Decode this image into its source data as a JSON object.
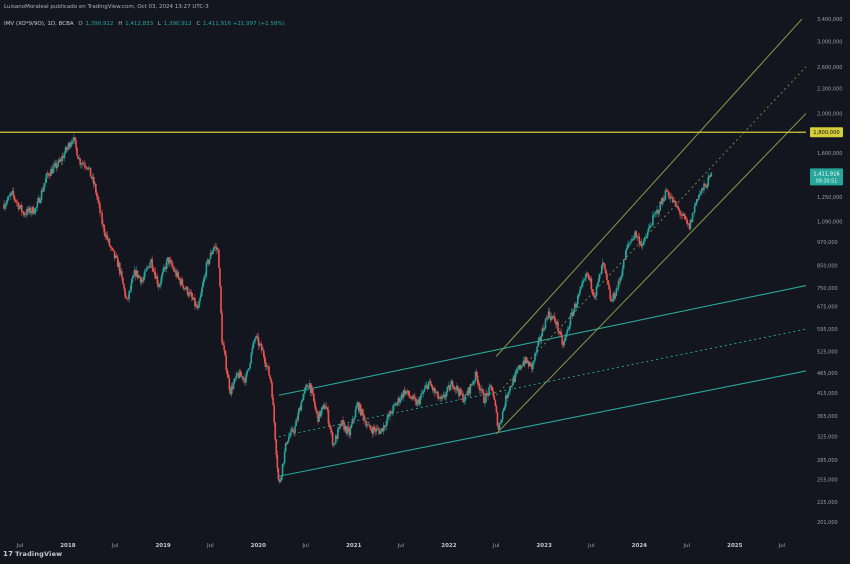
{
  "header": {
    "publisher": "LuisanoMoraleal publicado en TradingView.com, Oct 03, 2024 13:27 UTC-3",
    "symbol": "IMV (XO*9/9O), 1D, BCBA",
    "ohlc": [
      {
        "label": "O",
        "value": "1,390,912"
      },
      {
        "label": "H",
        "value": "1,412,833"
      },
      {
        "label": "L",
        "value": "1,390,912"
      },
      {
        "label": "C",
        "value": "1,411,916 +21,997 (+1.58%)"
      }
    ]
  },
  "footer": {
    "brand": "TradingView",
    "logo_glyph": "17"
  },
  "colors": {
    "background": "#13161f",
    "up": "#26a69a",
    "down": "#ef5350",
    "resistance": "#d4cc38",
    "channel_upper": "#8c9c4a",
    "channel_lower": "#2bb7a5",
    "price_badge": "#26a69a"
  },
  "chart_data": {
    "type": "candlestick",
    "scale": "log",
    "title": "",
    "xlabel": "",
    "ylabel": "",
    "x_ticks": [
      "Jul",
      "2018",
      "Jul",
      "2019",
      "Jul",
      "2020",
      "Jul",
      "2021",
      "Jul",
      "2022",
      "Jul",
      "2023",
      "Jul",
      "2024",
      "Jul",
      "2025",
      "Jul"
    ],
    "x_tick_dates": [
      "2017-07",
      "2018-01",
      "2018-07",
      "2019-01",
      "2019-07",
      "2020-01",
      "2020-07",
      "2021-01",
      "2021-07",
      "2022-01",
      "2022-07",
      "2023-01",
      "2023-07",
      "2024-01",
      "2024-07",
      "2025-01",
      "2025-07"
    ],
    "x_range": [
      "2017-05",
      "2025-10"
    ],
    "y_ticks": [
      "3,400,000",
      "3,000,000",
      "2,600,000",
      "2,300,000",
      "2,000,000",
      "1,800,000",
      "1,600,000",
      "1,250,000",
      "1,090,000",
      "970,000",
      "850,000",
      "750,000",
      "675,000",
      "595,000",
      "525,000",
      "465,000",
      "415,000",
      "365,000",
      "325,000",
      "285,000",
      "255,000",
      "225,000",
      "201,000"
    ],
    "y_tick_values": [
      3400000,
      3000000,
      2600000,
      2300000,
      2000000,
      1800000,
      1600000,
      1250000,
      1090000,
      970000,
      850000,
      750000,
      675000,
      595000,
      525000,
      465000,
      415000,
      365000,
      325000,
      285000,
      255000,
      225000,
      201000
    ],
    "ylim": [
      190000,
      3500000
    ],
    "grid": false,
    "price_path": [
      {
        "date": "2017-05-01",
        "price": 1200000
      },
      {
        "date": "2017-06-01",
        "price": 1270000
      },
      {
        "date": "2017-07-15",
        "price": 1140000
      },
      {
        "date": "2017-09-01",
        "price": 1170000
      },
      {
        "date": "2017-10-15",
        "price": 1420000
      },
      {
        "date": "2017-12-01",
        "price": 1520000
      },
      {
        "date": "2018-01-20",
        "price": 1750000
      },
      {
        "date": "2018-02-15",
        "price": 1530000
      },
      {
        "date": "2018-03-15",
        "price": 1500000
      },
      {
        "date": "2018-04-15",
        "price": 1320000
      },
      {
        "date": "2018-05-15",
        "price": 1060000
      },
      {
        "date": "2018-06-15",
        "price": 930000
      },
      {
        "date": "2018-07-15",
        "price": 850000
      },
      {
        "date": "2018-08-15",
        "price": 690000
      },
      {
        "date": "2018-09-15",
        "price": 820000
      },
      {
        "date": "2018-10-15",
        "price": 780000
      },
      {
        "date": "2018-11-15",
        "price": 880000
      },
      {
        "date": "2018-12-15",
        "price": 760000
      },
      {
        "date": "2019-01-20",
        "price": 880000
      },
      {
        "date": "2019-03-01",
        "price": 790000
      },
      {
        "date": "2019-04-15",
        "price": 720000
      },
      {
        "date": "2019-05-15",
        "price": 660000
      },
      {
        "date": "2019-06-15",
        "price": 840000
      },
      {
        "date": "2019-07-15",
        "price": 950000
      },
      {
        "date": "2019-08-01",
        "price": 920000
      },
      {
        "date": "2019-08-15",
        "price": 560000
      },
      {
        "date": "2019-09-15",
        "price": 420000
      },
      {
        "date": "2019-10-15",
        "price": 460000
      },
      {
        "date": "2019-11-15",
        "price": 450000
      },
      {
        "date": "2019-12-20",
        "price": 570000
      },
      {
        "date": "2020-01-20",
        "price": 520000
      },
      {
        "date": "2020-02-20",
        "price": 440000
      },
      {
        "date": "2020-03-20",
        "price": 245000
      },
      {
        "date": "2020-04-20",
        "price": 320000
      },
      {
        "date": "2020-05-20",
        "price": 340000
      },
      {
        "date": "2020-06-20",
        "price": 410000
      },
      {
        "date": "2020-07-15",
        "price": 440000
      },
      {
        "date": "2020-08-15",
        "price": 360000
      },
      {
        "date": "2020-09-15",
        "price": 390000
      },
      {
        "date": "2020-10-15",
        "price": 310000
      },
      {
        "date": "2020-11-15",
        "price": 350000
      },
      {
        "date": "2020-12-15",
        "price": 330000
      },
      {
        "date": "2021-01-15",
        "price": 390000
      },
      {
        "date": "2021-03-01",
        "price": 340000
      },
      {
        "date": "2021-04-15",
        "price": 335000
      },
      {
        "date": "2021-06-01",
        "price": 380000
      },
      {
        "date": "2021-07-15",
        "price": 420000
      },
      {
        "date": "2021-09-01",
        "price": 390000
      },
      {
        "date": "2021-10-15",
        "price": 440000
      },
      {
        "date": "2021-12-01",
        "price": 395000
      },
      {
        "date": "2022-01-15",
        "price": 440000
      },
      {
        "date": "2022-03-01",
        "price": 400000
      },
      {
        "date": "2022-04-15",
        "price": 460000
      },
      {
        "date": "2022-05-15",
        "price": 400000
      },
      {
        "date": "2022-06-15",
        "price": 430000
      },
      {
        "date": "2022-07-10",
        "price": 340000
      },
      {
        "date": "2022-08-15",
        "price": 420000
      },
      {
        "date": "2022-09-15",
        "price": 460000
      },
      {
        "date": "2022-10-15",
        "price": 500000
      },
      {
        "date": "2022-11-15",
        "price": 480000
      },
      {
        "date": "2022-12-15",
        "price": 560000
      },
      {
        "date": "2023-01-15",
        "price": 650000
      },
      {
        "date": "2023-02-15",
        "price": 620000
      },
      {
        "date": "2023-03-15",
        "price": 540000
      },
      {
        "date": "2023-04-15",
        "price": 640000
      },
      {
        "date": "2023-05-15",
        "price": 720000
      },
      {
        "date": "2023-06-15",
        "price": 810000
      },
      {
        "date": "2023-07-15",
        "price": 720000
      },
      {
        "date": "2023-08-15",
        "price": 860000
      },
      {
        "date": "2023-09-15",
        "price": 690000
      },
      {
        "date": "2023-10-15",
        "price": 770000
      },
      {
        "date": "2023-11-15",
        "price": 940000
      },
      {
        "date": "2023-12-15",
        "price": 1020000
      },
      {
        "date": "2024-01-15",
        "price": 950000
      },
      {
        "date": "2024-02-15",
        "price": 1080000
      },
      {
        "date": "2024-03-15",
        "price": 1170000
      },
      {
        "date": "2024-04-15",
        "price": 1300000
      },
      {
        "date": "2024-05-15",
        "price": 1200000
      },
      {
        "date": "2024-06-15",
        "price": 1120000
      },
      {
        "date": "2024-07-10",
        "price": 1050000
      },
      {
        "date": "2024-08-10",
        "price": 1250000
      },
      {
        "date": "2024-09-10",
        "price": 1330000
      },
      {
        "date": "2024-10-03",
        "price": 1411916
      }
    ],
    "resistance_level": {
      "label": "1,800,000",
      "value": 1800000
    },
    "last_price": {
      "label": "1,411,916",
      "countdown": "09:30:51",
      "value": 1411916
    },
    "channels": [
      {
        "name": "",
        "color": "channel_lower",
        "upper": [
          {
            "date": "2020-03-20",
            "price": 410000
          },
          {
            "date": "2025-10-01",
            "price": 760000
          }
        ],
        "middle": [
          {
            "date": "2020-03-20",
            "price": 325000
          },
          {
            "date": "2025-10-01",
            "price": 595000
          }
        ],
        "lower": [
          {
            "date": "2020-03-20",
            "price": 260000
          },
          {
            "date": "2025-10-01",
            "price": 470000
          }
        ]
      },
      {
        "name": "",
        "color": "channel_upper",
        "upper": [
          {
            "date": "2022-07-01",
            "price": 510000
          },
          {
            "date": "2025-09-15",
            "price": 3400000
          }
        ],
        "middle": [
          {
            "date": "2022-07-01",
            "price": 410000
          },
          {
            "date": "2025-10-01",
            "price": 2600000
          }
        ],
        "lower": [
          {
            "date": "2022-07-01",
            "price": 330000
          },
          {
            "date": "2025-10-01",
            "price": 2000000
          }
        ]
      }
    ]
  }
}
